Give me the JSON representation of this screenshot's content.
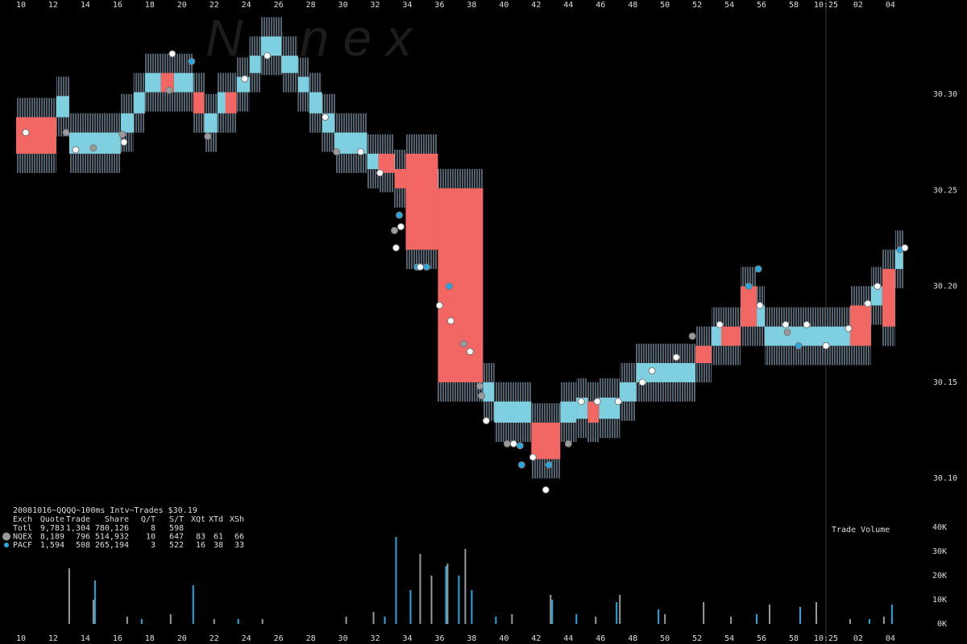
{
  "chart_data": [
    {
      "type": "quote",
      "watermark": "N a n e x",
      "xlim": [
        8.7,
        68.76
      ],
      "xticks": [
        10,
        12,
        14,
        16,
        18,
        20,
        22,
        24,
        26,
        28,
        30,
        32,
        34,
        36,
        38,
        40,
        42,
        44,
        46,
        48,
        50,
        52,
        54,
        56,
        58,
        {
          "value": 60,
          "label": "10:25"
        },
        {
          "value": 62,
          "label": "02"
        },
        {
          "value": 64,
          "label": "04"
        }
      ],
      "ylim": [
        30.085,
        30.349
      ],
      "yticks": [
        {
          "value": 30.1,
          "label": "30.10"
        },
        {
          "value": 30.15,
          "label": "30.15"
        },
        {
          "value": 30.2,
          "label": "30.20"
        },
        {
          "value": 30.25,
          "label": "30.25"
        },
        {
          "value": 30.3,
          "label": "30.30"
        }
      ],
      "marker_x": 60,
      "quotes": {
        "start": [
          9.7,
          12.2,
          13.0,
          16.2,
          17.0,
          17.7,
          18.7,
          19.5,
          20.7,
          21.4,
          22.2,
          22.7,
          23.4,
          24.2,
          24.9,
          26.2,
          27.2,
          27.9,
          28.7,
          29.5,
          31.5,
          32.2,
          33.2,
          33.9,
          35.9,
          38.7,
          39.4,
          41.7,
          43.5,
          44.5,
          45.2,
          45.9,
          47.2,
          48.2,
          51.9,
          52.9,
          53.5,
          54.7,
          55.7,
          56.2,
          61.5,
          62.8,
          63.5,
          64.3
        ],
        "end": [
          12.2,
          13.0,
          16.2,
          17.0,
          17.7,
          18.7,
          19.5,
          20.7,
          21.4,
          22.2,
          22.7,
          23.4,
          24.2,
          24.9,
          26.2,
          27.2,
          27.9,
          28.7,
          29.5,
          31.5,
          32.2,
          33.2,
          33.9,
          35.9,
          38.7,
          39.4,
          41.7,
          43.5,
          44.5,
          45.2,
          45.9,
          47.2,
          48.2,
          51.9,
          52.9,
          53.5,
          54.7,
          55.7,
          56.2,
          61.5,
          62.8,
          63.5,
          64.3,
          64.8
        ],
        "bid": [
          30.269,
          30.288,
          30.269,
          30.28,
          30.29,
          30.301,
          30.301,
          30.301,
          30.29,
          30.28,
          30.29,
          30.29,
          30.301,
          30.311,
          30.32,
          30.311,
          30.301,
          30.29,
          30.28,
          30.269,
          30.261,
          30.259,
          30.251,
          30.219,
          30.15,
          30.14,
          30.129,
          30.11,
          30.129,
          30.131,
          30.129,
          30.131,
          30.14,
          30.15,
          30.16,
          30.169,
          30.169,
          30.179,
          30.179,
          30.169,
          30.169,
          30.19,
          30.179,
          30.209
        ],
        "ask": [
          30.288,
          30.299,
          30.28,
          30.29,
          30.301,
          30.311,
          30.311,
          30.311,
          30.301,
          30.29,
          30.301,
          30.301,
          30.309,
          30.32,
          30.33,
          30.32,
          30.309,
          30.301,
          30.29,
          30.28,
          30.269,
          30.269,
          30.261,
          30.269,
          30.251,
          30.15,
          30.14,
          30.129,
          30.14,
          30.142,
          30.14,
          30.142,
          30.15,
          30.16,
          30.169,
          30.179,
          30.179,
          30.2,
          30.19,
          30.179,
          30.19,
          30.2,
          30.209,
          30.219
        ],
        "colors": [
          "#f26763",
          "#7ecfe0",
          "#7ecfe0",
          "#7ecfe0",
          "#7ecfe0",
          "#7ecfe0",
          "#f26763",
          "#7ecfe0",
          "#f26763",
          "#7ecfe0",
          "#7ecfe0",
          "#f26763",
          "#7ecfe0",
          "#7ecfe0",
          "#7ecfe0",
          "#7ecfe0",
          "#7ecfe0",
          "#7ecfe0",
          "#7ecfe0",
          "#7ecfe0",
          "#7ecfe0",
          "#f26763",
          "#f26763",
          "#f26763",
          "#f26763",
          "#7ecfe0",
          "#7ecfe0",
          "#f26763",
          "#7ecfe0",
          "#7ecfe0",
          "#f26763",
          "#7ecfe0",
          "#7ecfe0",
          "#7ecfe0",
          "#f26763",
          "#7ecfe0",
          "#f26763",
          "#f26763",
          "#7ecfe0",
          "#7ecfe0",
          "#f26763",
          "#7ecfe0",
          "#f26763",
          "#7ecfe0"
        ]
      },
      "series": [
        {
          "color": "#9a9a9a",
          "x": [
            12.8,
            14.5,
            16.3,
            19.2,
            21.6,
            29.6,
            33.2,
            37.5,
            38.6,
            38.5,
            40.2,
            44.0,
            51.7,
            57.6
          ],
          "values": [
            30.28,
            30.272,
            30.279,
            30.302,
            30.278,
            30.27,
            30.229,
            30.17,
            30.143,
            30.148,
            30.118,
            30.118,
            30.174,
            30.176
          ]
        },
        {
          "color": "#29a8e0",
          "x": [
            20.6,
            33.5,
            34.6,
            35.2,
            36.6,
            41.0,
            41.1,
            42.8,
            55.2,
            55.8,
            58.3,
            64.6
          ],
          "values": [
            30.317,
            30.237,
            30.21,
            30.21,
            30.2,
            30.117,
            30.107,
            30.107,
            30.2,
            30.209,
            30.169,
            30.219
          ]
        },
        {
          "color": "#ffffff",
          "x": [
            10.3,
            13.4,
            16.4,
            19.4,
            23.9,
            25.3,
            28.9,
            31.1,
            32.3,
            33.3,
            33.6,
            34.8,
            36.0,
            36.7,
            37.9,
            38.9,
            40.6,
            41.8,
            42.6,
            44.8,
            45.8,
            47.1,
            48.6,
            49.2,
            50.7,
            53.4,
            55.9,
            57.5,
            58.8,
            60.0,
            61.4,
            62.6,
            63.2,
            64.9
          ],
          "values": [
            30.28,
            30.271,
            30.275,
            30.321,
            30.308,
            30.32,
            30.288,
            30.27,
            30.259,
            30.22,
            30.231,
            30.21,
            30.19,
            30.182,
            30.166,
            30.13,
            30.118,
            30.111,
            30.094,
            30.14,
            30.14,
            30.14,
            30.15,
            30.156,
            30.163,
            30.18,
            30.19,
            30.18,
            30.18,
            30.169,
            30.178,
            30.191,
            30.2,
            30.22
          ]
        }
      ]
    },
    {
      "type": "bar",
      "title": "Trade Volume",
      "xlim": [
        8.7,
        68.76
      ],
      "xticks": [
        10,
        12,
        14,
        16,
        18,
        20,
        22,
        24,
        26,
        28,
        30,
        32,
        34,
        36,
        38,
        40,
        42,
        44,
        46,
        48,
        50,
        52,
        54,
        56,
        58,
        {
          "value": 60,
          "label": "10:25"
        },
        {
          "value": 62,
          "label": "02"
        },
        {
          "value": 64,
          "label": "04"
        }
      ],
      "ylim": [
        0,
        40000
      ],
      "yticks": [
        {
          "value": 0,
          "label": "0K"
        },
        {
          "value": 10000,
          "label": "10K"
        },
        {
          "value": 20000,
          "label": "20K"
        },
        {
          "value": 30000,
          "label": "30K"
        },
        {
          "value": 40000,
          "label": "40K"
        }
      ],
      "series": [
        {
          "color": "#9a9a9a",
          "x": [
            13.0,
            14.5,
            16.6,
            19.3,
            22.0,
            25.0,
            30.2,
            31.9,
            34.8,
            35.5,
            36.5,
            37.6,
            40.5,
            42.9,
            45.7,
            47.2,
            50.0,
            52.4,
            54.1,
            56.5,
            59.4,
            61.5,
            63.6
          ],
          "values": [
            23000,
            10000,
            3000,
            4000,
            2000,
            2000,
            3000,
            5000,
            29000,
            20000,
            25000,
            31000,
            4000,
            12000,
            3000,
            12000,
            4000,
            9000,
            3000,
            8000,
            9000,
            2000,
            3000
          ]
        },
        {
          "color": "#29a8e0",
          "x": [
            14.6,
            17.5,
            20.7,
            23.5,
            32.6,
            33.3,
            34.2,
            36.4,
            37.2,
            38.0,
            39.5,
            43.0,
            44.5,
            47.0,
            49.6,
            55.7,
            58.4,
            62.7,
            64.1
          ],
          "values": [
            18000,
            2000,
            16000,
            2000,
            3000,
            36000,
            14000,
            24000,
            20000,
            14000,
            3000,
            10000,
            4000,
            9000,
            6000,
            4000,
            7000,
            2000,
            8000
          ]
        }
      ]
    }
  ],
  "stats": {
    "title": "20081016~QQQQ~100ms Intv~Trades $30.19",
    "header": [
      "Exch",
      "Quote",
      "Trade",
      "Share",
      "Q/T",
      "S/T",
      "XQt",
      "XTd",
      "XSh"
    ],
    "rows": [
      [
        "Totl",
        "9,783",
        "1,304",
        "780,126",
        "8",
        "598"
      ],
      [
        "NQEX",
        "8,189",
        "796",
        "514,932",
        "10",
        "647",
        "83",
        "61",
        "66"
      ],
      [
        "PACF",
        "1,594",
        "508",
        "265,194",
        "3",
        "522",
        "16",
        "38",
        "33"
      ]
    ]
  }
}
